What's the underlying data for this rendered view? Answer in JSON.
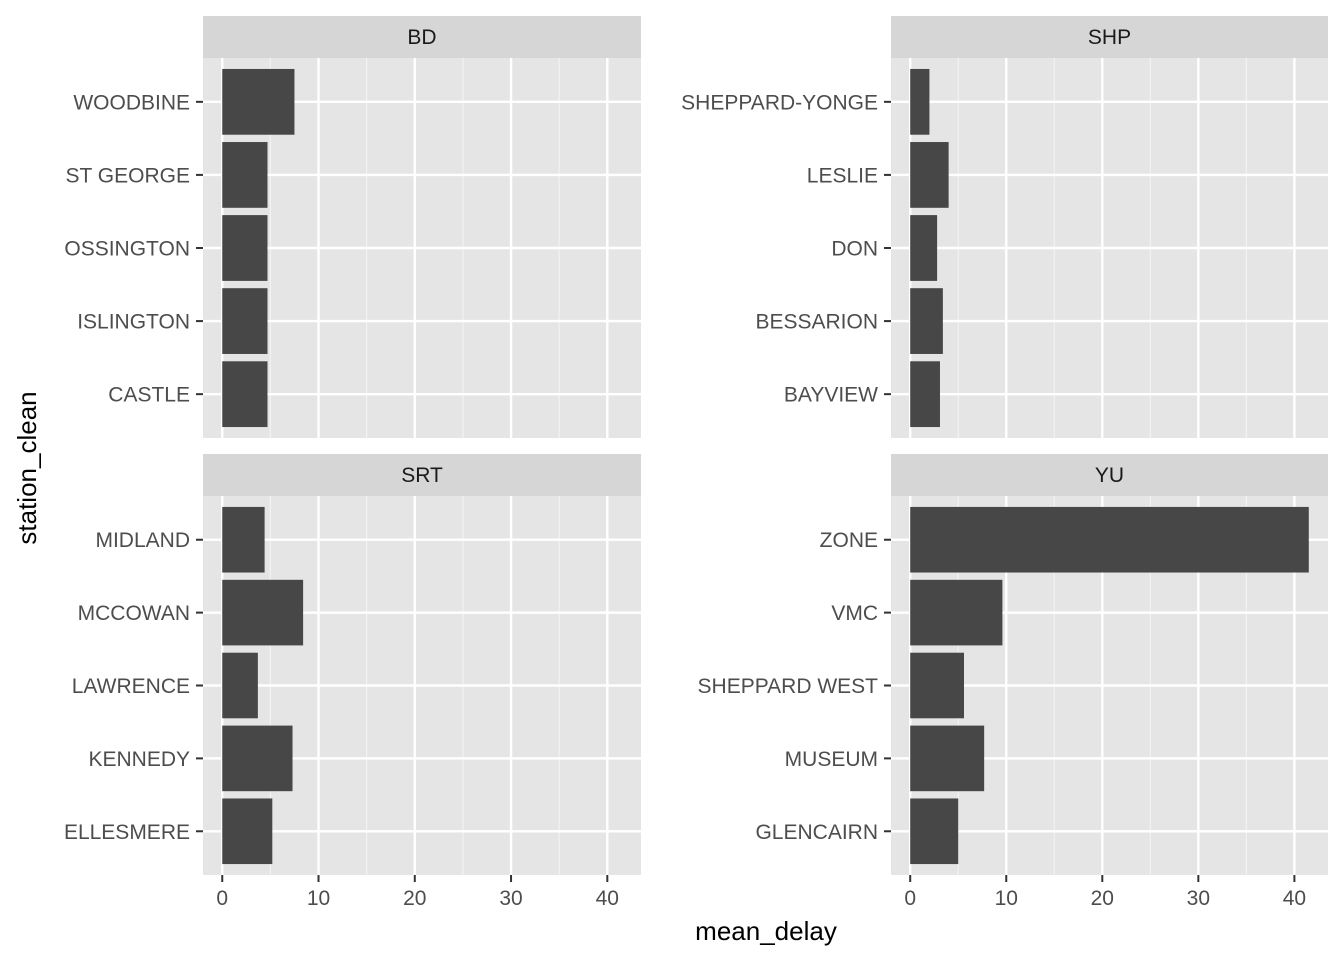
{
  "chart_data": {
    "type": "bar",
    "orientation": "horizontal",
    "facet_layout": "2x2",
    "xlabel": "mean_delay",
    "ylabel": "station_clean",
    "xlim": [
      -2,
      43.5
    ],
    "x_ticks": [
      "0",
      "10",
      "20",
      "30",
      "40"
    ],
    "grid": true,
    "bar_color": "#474747",
    "panel_bg": "#e5e5e5",
    "strip_bg": "#d6d6d6",
    "facets": [
      {
        "name": "BD",
        "categories": [
          "WOODBINE",
          "ST GEORGE",
          "OSSINGTON",
          "ISLINGTON",
          "CASTLE"
        ],
        "values": [
          7.5,
          4.7,
          4.7,
          4.7,
          4.7
        ]
      },
      {
        "name": "SHP",
        "categories": [
          "SHEPPARD-YONGE",
          "LESLIE",
          "DON",
          "BESSARION",
          "BAYVIEW"
        ],
        "values": [
          2.0,
          4.0,
          2.8,
          3.4,
          3.1
        ]
      },
      {
        "name": "SRT",
        "categories": [
          "MIDLAND",
          "MCCOWAN",
          "LAWRENCE",
          "KENNEDY",
          "ELLESMERE"
        ],
        "values": [
          4.4,
          8.4,
          3.7,
          7.3,
          5.2
        ]
      },
      {
        "name": "YU",
        "categories": [
          "ZONE",
          "VMC",
          "SHEPPARD WEST",
          "MUSEUM",
          "GLENCAIRN"
        ],
        "values": [
          41.5,
          9.6,
          5.6,
          7.7,
          5.0
        ]
      }
    ]
  }
}
